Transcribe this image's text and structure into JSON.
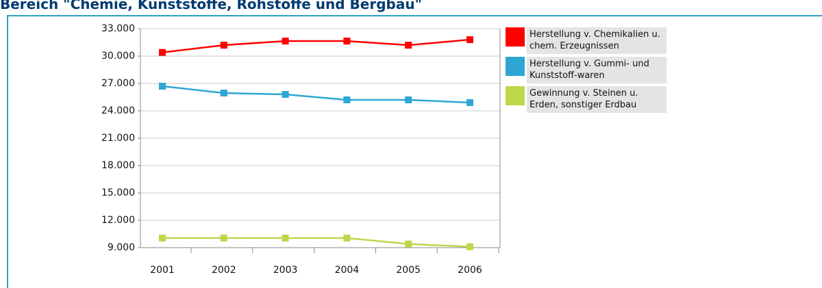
{
  "chart_data": {
    "type": "line",
    "title": "Bereich \"Chemie, Kunststoffe, Rohstoffe und Bergbau\"",
    "categories": [
      "2001",
      "2002",
      "2003",
      "2004",
      "2005",
      "2006"
    ],
    "series": [
      {
        "name": "Herstellung v. Chemikalien u. chem. Erzeugnissen",
        "color": "#ff0000",
        "values": [
          30400,
          31200,
          31650,
          31650,
          31200,
          31800
        ]
      },
      {
        "name": "Herstellung v. Gummi- und Kunststoff-waren",
        "color": "#2ea6d3",
        "values": [
          26700,
          25950,
          25800,
          25200,
          25200,
          24900
        ]
      },
      {
        "name": "Gewinnung v. Steinen u. Erden, sonstiger Erdbau",
        "color": "#bcd84a",
        "values": [
          10050,
          10050,
          10050,
          10050,
          9400,
          9100
        ]
      }
    ],
    "ylim": [
      9000,
      33000
    ],
    "yticks": [
      {
        "value": 9000,
        "label": "9.000"
      },
      {
        "value": 12000,
        "label": "12.000"
      },
      {
        "value": 15000,
        "label": "15.000"
      },
      {
        "value": 18000,
        "label": "18.000"
      },
      {
        "value": 21000,
        "label": "21.000"
      },
      {
        "value": 24000,
        "label": "24.000"
      },
      {
        "value": 27000,
        "label": "27.000"
      },
      {
        "value": 30000,
        "label": "30.000"
      },
      {
        "value": 33000,
        "label": "33.000"
      }
    ],
    "grid": true,
    "legend": "right"
  }
}
